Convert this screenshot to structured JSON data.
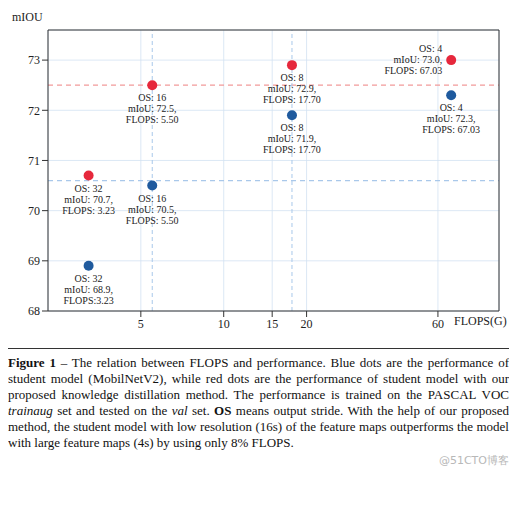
{
  "chart_data": {
    "type": "scatter",
    "x_label": "FLOPS(G)",
    "y_label": "mIOU",
    "log": "x",
    "xlim": [
      2.3,
      100
    ],
    "xticks": [
      5,
      10,
      15,
      20,
      60
    ],
    "ylim": [
      68,
      73.6
    ],
    "yticks": [
      68,
      69,
      70,
      71,
      72,
      73
    ],
    "grid": true,
    "series": [
      {
        "color": "#1f5a9e",
        "marker": "circle",
        "x": [
          3.23,
          5.5,
          17.7,
          67.03
        ],
        "values": [
          68.9,
          70.5,
          71.9,
          72.3
        ],
        "point_labels": [
          [
            "OS: 32",
            "mIoU: 68.9,",
            "FLOPS:3.23"
          ],
          [
            "OS: 16",
            "mIoU: 70.5,",
            "FLOPS: 5.50"
          ],
          [
            "OS: 8",
            "mIoU: 71.9,",
            "FLOPS: 17.70"
          ],
          [
            "OS: 4",
            "mIoU: 72.3,",
            "FLOPS: 67.03"
          ]
        ]
      },
      {
        "color": "#e6283c",
        "marker": "circle",
        "x": [
          3.23,
          5.5,
          17.7,
          67.03
        ],
        "values": [
          70.7,
          72.5,
          72.9,
          73.0
        ],
        "point_labels": [
          [
            "OS: 32",
            "mIoU: 70.7,",
            "FLOPS: 3.23"
          ],
          [
            "OS: 16",
            "mIoU: 72.5,",
            "FLOPS: 5.50"
          ],
          [
            "OS: 8",
            "mIoU: 72.9,",
            "FLOPS: 17.70"
          ],
          [
            "OS: 4",
            "mIoU: 73.0,",
            "FLOPS: 67.03"
          ]
        ]
      }
    ],
    "reference_lines": [
      {
        "axis": "y",
        "value": 72.5,
        "color": "#f29a9a"
      },
      {
        "axis": "y",
        "value": 70.6,
        "color": "#a9c8ea"
      },
      {
        "axis": "x",
        "value": 5.5,
        "color": "#a9c8ea"
      },
      {
        "axis": "x",
        "value": 17.7,
        "color": "#a9c8ea"
      }
    ]
  },
  "caption": [
    {
      "text": "Figure 1",
      "style": "bold"
    },
    {
      "text": " – The relation between FLOPS and performance. Blue dots are the performance of student model (MobilNetV2), while red dots are the performance of student model with our proposed knowledge distillation method. The performance is trained on the PASCAL VOC ",
      "style": "normal"
    },
    {
      "text": "trainaug",
      "style": "italic"
    },
    {
      "text": " set and tested on the ",
      "style": "normal"
    },
    {
      "text": "val",
      "style": "italic"
    },
    {
      "text": " set. ",
      "style": "normal"
    },
    {
      "text": "OS",
      "style": "bold"
    },
    {
      "text": " means output stride. With the help of our proposed method, the student model with low resolution (16s) of the feature maps outperforms the model with large feature maps (4s) by using only 8% FLOPS.",
      "style": "normal"
    }
  ],
  "watermark": "@51CTO博客"
}
